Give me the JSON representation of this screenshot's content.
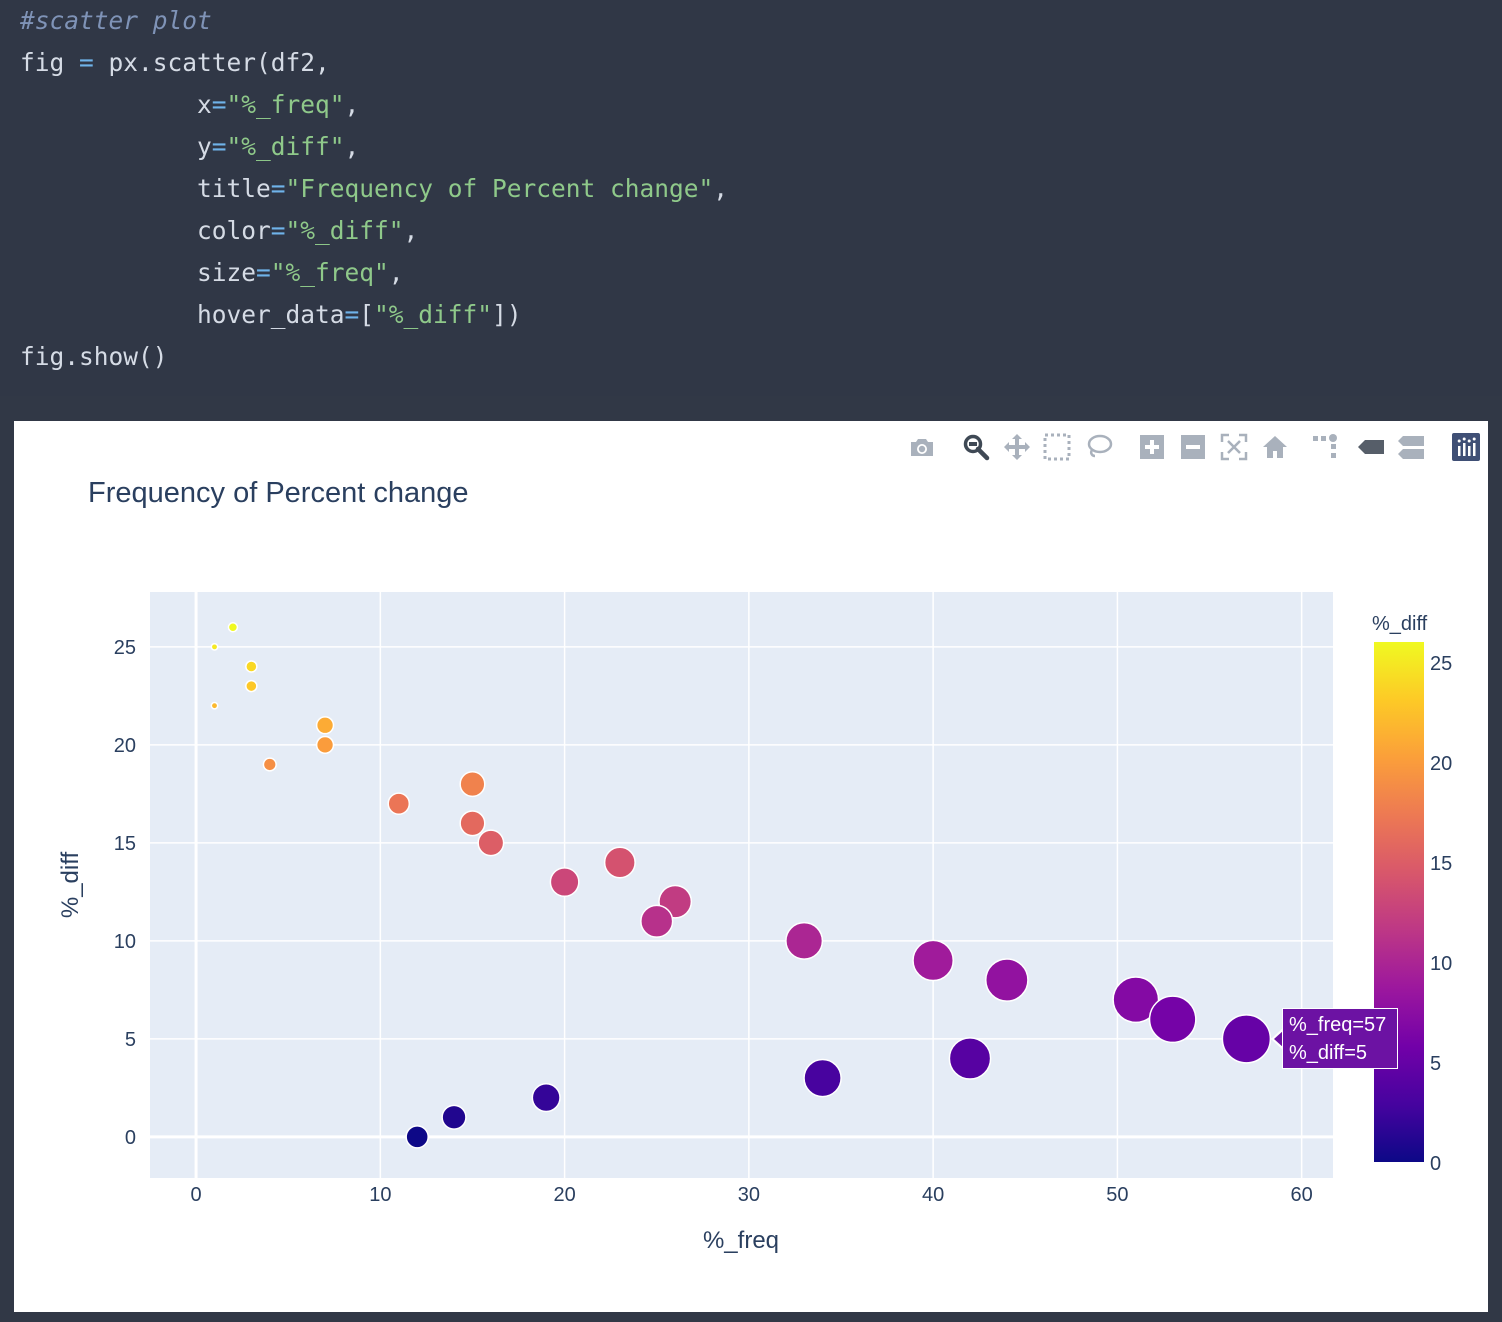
{
  "code": {
    "lines": [
      [
        [
          "c-comment",
          "#scatter plot"
        ]
      ],
      [
        [
          "c-txt",
          "fig "
        ],
        [
          "c-op",
          "="
        ],
        [
          "c-txt",
          " px.scatter(df2,"
        ]
      ],
      [
        [
          "c-txt",
          "            x"
        ],
        [
          "c-op",
          "="
        ],
        [
          "c-str",
          "\"%_freq\""
        ],
        [
          "c-txt",
          ","
        ]
      ],
      [
        [
          "c-txt",
          "            y"
        ],
        [
          "c-op",
          "="
        ],
        [
          "c-str",
          "\"%_diff\""
        ],
        [
          "c-txt",
          ","
        ]
      ],
      [
        [
          "c-txt",
          "            title"
        ],
        [
          "c-op",
          "="
        ],
        [
          "c-str",
          "\"Frequency of Percent change\""
        ],
        [
          "c-txt",
          ","
        ]
      ],
      [
        [
          "c-txt",
          "            color"
        ],
        [
          "c-op",
          "="
        ],
        [
          "c-str",
          "\"%_diff\""
        ],
        [
          "c-txt",
          ","
        ]
      ],
      [
        [
          "c-txt",
          "            size"
        ],
        [
          "c-op",
          "="
        ],
        [
          "c-str",
          "\"%_freq\""
        ],
        [
          "c-txt",
          ","
        ]
      ],
      [
        [
          "c-txt",
          "            hover_data"
        ],
        [
          "c-op",
          "="
        ],
        [
          "c-txt",
          "["
        ],
        [
          "c-str",
          "\"%_diff\""
        ],
        [
          "c-txt",
          "])"
        ]
      ],
      [
        [
          "c-txt",
          "fig.show()"
        ]
      ]
    ]
  },
  "modebar": {
    "buttons": [
      "camera-icon",
      "zoom-icon",
      "pan-icon",
      "box-select-icon",
      "lasso-select-icon",
      "zoom-in-icon",
      "zoom-out-icon",
      "autoscale-icon",
      "reset-axes-icon",
      "spike-lines-icon",
      "hover-closest-icon",
      "hover-compare-icon",
      "plotly-logo-icon"
    ],
    "active": "zoom-icon"
  },
  "chart_data": {
    "type": "scatter",
    "title": "Frequency of Percent change",
    "xlabel": "%_freq",
    "ylabel": "%_diff",
    "xlim": [
      -2.5,
      61.7
    ],
    "ylim": [
      -2.1,
      27.8
    ],
    "x_ticks": [
      0,
      10,
      20,
      30,
      40,
      50,
      60
    ],
    "y_ticks": [
      0,
      5,
      10,
      15,
      20,
      25
    ],
    "grid": true,
    "size_by": "%_freq",
    "color_by": "%_diff",
    "points": [
      {
        "x": 1,
        "y": 25
      },
      {
        "x": 2,
        "y": 26
      },
      {
        "x": 3,
        "y": 24
      },
      {
        "x": 3,
        "y": 23
      },
      {
        "x": 1,
        "y": 22
      },
      {
        "x": 7,
        "y": 21
      },
      {
        "x": 7,
        "y": 20
      },
      {
        "x": 4,
        "y": 19
      },
      {
        "x": 15,
        "y": 18
      },
      {
        "x": 11,
        "y": 17
      },
      {
        "x": 15,
        "y": 16
      },
      {
        "x": 16,
        "y": 15
      },
      {
        "x": 23,
        "y": 14
      },
      {
        "x": 20,
        "y": 13
      },
      {
        "x": 26,
        "y": 12
      },
      {
        "x": 25,
        "y": 11
      },
      {
        "x": 33,
        "y": 10
      },
      {
        "x": 40,
        "y": 9
      },
      {
        "x": 44,
        "y": 8
      },
      {
        "x": 51,
        "y": 7
      },
      {
        "x": 53,
        "y": 6
      },
      {
        "x": 57,
        "y": 5
      },
      {
        "x": 42,
        "y": 4
      },
      {
        "x": 34,
        "y": 3
      },
      {
        "x": 19,
        "y": 2
      },
      {
        "x": 14,
        "y": 1
      },
      {
        "x": 12,
        "y": 0
      }
    ],
    "colorbar": {
      "title": "%_diff",
      "ticks": [
        0,
        5,
        10,
        15,
        20,
        25
      ],
      "range": [
        0,
        26
      ],
      "colorscale": [
        "#0d0887",
        "#46039f",
        "#7201a8",
        "#9c179e",
        "#bd3786",
        "#d8576b",
        "#ed7953",
        "#fb9f3a",
        "#fdca26",
        "#f0f921"
      ]
    },
    "hover": {
      "lines": [
        "%_freq=57",
        "%_diff=5"
      ]
    }
  }
}
